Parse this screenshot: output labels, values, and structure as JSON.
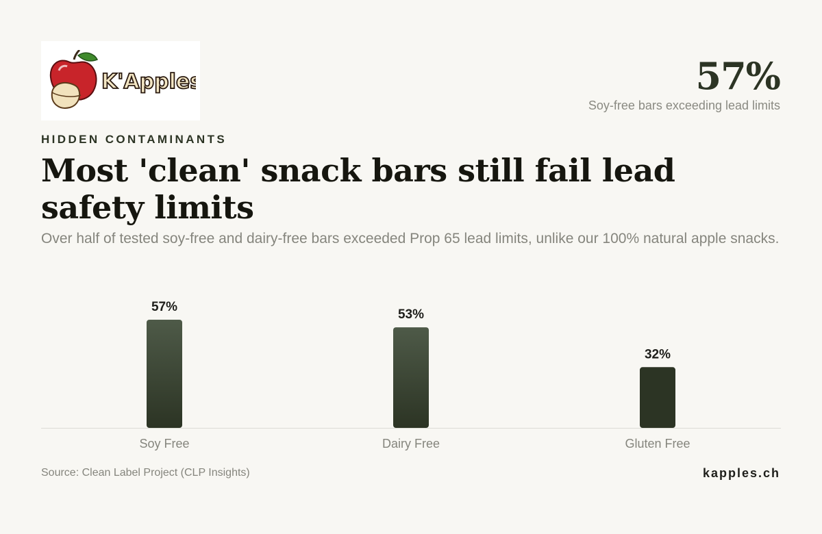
{
  "logo": {
    "text": "K'Apples",
    "icon": "apple-icon"
  },
  "headline_stat": {
    "value": "57%",
    "label": "Soy-free bars exceeding lead limits"
  },
  "eyebrow": "HIDDEN CONTAMINANTS",
  "title": "Most 'clean' snack bars still fail lead safety limits",
  "subtitle": "Over half of tested soy-free and dairy-free bars exceeded Prop 65 lead limits, unlike our 100% natural apple snacks.",
  "chart_data": {
    "type": "bar",
    "categories": [
      "Soy Free",
      "Dairy Free",
      "Gluten Free"
    ],
    "values": [
      57,
      53,
      32
    ],
    "value_labels": [
      "57%",
      "53%",
      "32%"
    ],
    "unit": "%",
    "ylim": [
      0,
      57
    ],
    "grid": false,
    "legend": "none",
    "colors": {
      "gradient_top": "#4e5a48",
      "gradient_bottom": "#2c3424",
      "solid": "#2c3424",
      "baseline": "#dcdcd6"
    }
  },
  "footer": {
    "source": "Source: Clean Label Project (CLP Insights)",
    "brand": "kapples.ch"
  }
}
